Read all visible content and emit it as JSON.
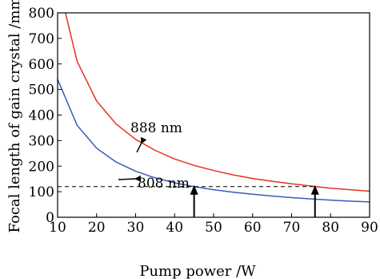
{
  "chart_data": {
    "type": "line",
    "xlabel": "Pump power /W",
    "ylabel": "Focal length of gain crystal /mm",
    "xlim": [
      10,
      90
    ],
    "ylim": [
      0,
      800
    ],
    "xticks": [
      10,
      20,
      30,
      40,
      50,
      60,
      70,
      80,
      90
    ],
    "yticks": [
      0,
      100,
      200,
      300,
      400,
      500,
      600,
      700,
      800
    ],
    "grid": false,
    "series": [
      {
        "name": "888 nm",
        "color": "#e8321e",
        "x": [
          12,
          15,
          20,
          25,
          30,
          35,
          40,
          45,
          50,
          55,
          60,
          65,
          70,
          75,
          80,
          85,
          90
        ],
        "y": [
          800,
          610,
          455,
          365,
          305,
          262,
          228,
          203,
          183,
          166,
          152,
          141,
          131,
          122,
          114,
          108,
          102
        ]
      },
      {
        "name": "808 nm",
        "color": "#3a5bb8",
        "x": [
          10,
          15,
          20,
          25,
          30,
          35,
          40,
          45,
          50,
          55,
          60,
          65,
          70,
          75,
          80,
          85,
          90
        ],
        "y": [
          540,
          360,
          270,
          216,
          180,
          154,
          135,
          120,
          108,
          98,
          90,
          83,
          77,
          72,
          67,
          63,
          60
        ]
      }
    ],
    "reference_line": {
      "y": 120,
      "style": "dashed",
      "x_range": [
        10,
        76
      ]
    },
    "markers": [
      {
        "x": 45,
        "y_top": 120,
        "direction": "up"
      },
      {
        "x": 76,
        "y_top": 120,
        "direction": "up"
      }
    ],
    "annotations": [
      {
        "text": "888 nm",
        "series": "888 nm"
      },
      {
        "text": "808 nm",
        "series": "808 nm"
      }
    ]
  }
}
